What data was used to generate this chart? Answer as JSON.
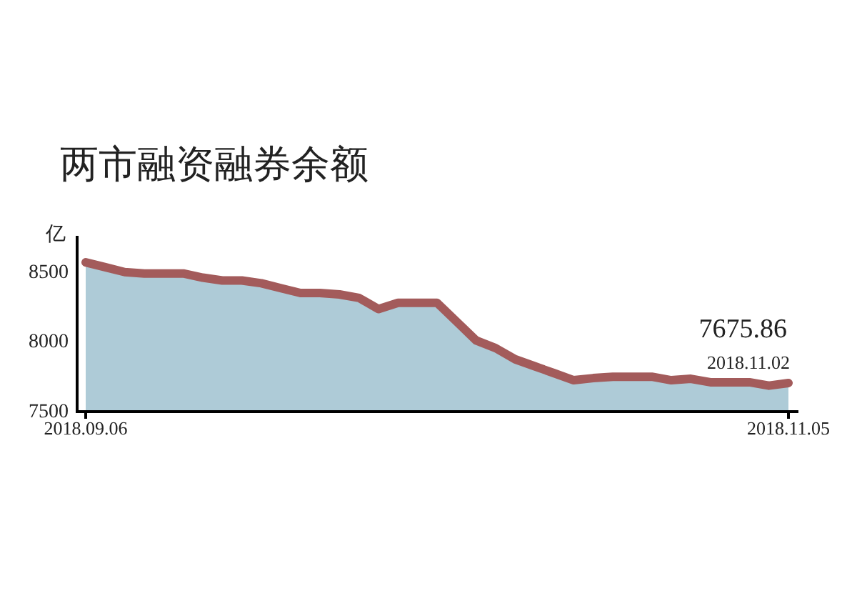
{
  "chart_data": {
    "type": "area",
    "title": "两市融资融券余额",
    "ylabel": "亿",
    "categories": [
      "2018.09.06",
      null,
      null,
      null,
      null,
      null,
      null,
      null,
      null,
      null,
      null,
      null,
      null,
      null,
      null,
      null,
      null,
      null,
      null,
      null,
      null,
      null,
      null,
      null,
      null,
      null,
      null,
      null,
      null,
      null,
      null,
      null,
      null,
      null,
      null,
      null,
      "2018.11.05"
    ],
    "series": [
      {
        "color": "#aecbd7",
        "values": [
          8560,
          8525,
          8490,
          8480,
          8480,
          8480,
          8450,
          8430,
          8430,
          8410,
          8375,
          8340,
          8340,
          8330,
          8305,
          8225,
          8270,
          8270,
          8270,
          8135,
          8000,
          7945,
          7865,
          7815,
          7765,
          7715,
          7730,
          7740,
          7740,
          7740,
          7715,
          7725,
          7700,
          7700,
          7700,
          7675.86,
          7695
        ]
      },
      {
        "type": "line",
        "color": "#a35b5b",
        "values": [
          8560,
          8525,
          8490,
          8480,
          8480,
          8480,
          8450,
          8430,
          8430,
          8410,
          8375,
          8340,
          8340,
          8330,
          8305,
          8225,
          8270,
          8270,
          8270,
          8135,
          8000,
          7945,
          7865,
          7815,
          7765,
          7715,
          7730,
          7740,
          7740,
          7740,
          7715,
          7725,
          7700,
          7700,
          7700,
          7675.86,
          7695
        ]
      }
    ],
    "ylim": [
      7500,
      8750
    ],
    "yticks": [
      7500,
      8000,
      8500
    ],
    "grid": false,
    "annotations": [
      "7675.86",
      "2018.11.02"
    ]
  }
}
